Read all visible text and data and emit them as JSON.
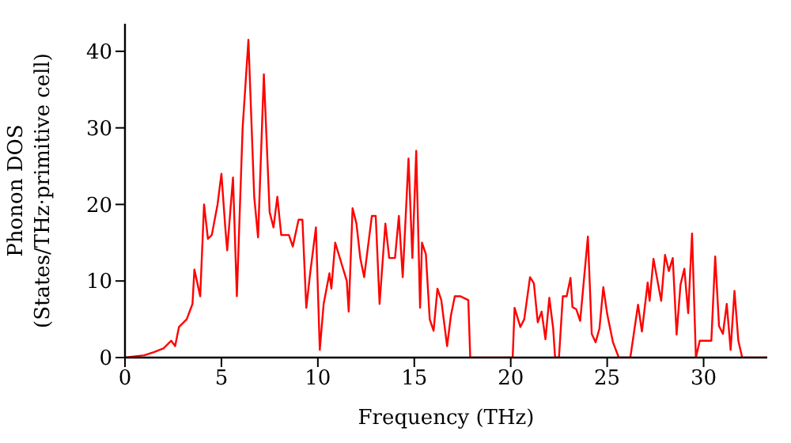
{
  "chart_data": {
    "type": "line",
    "xlabel": "Frequency (THz)",
    "ylabel": "Phonon DOS\n(States/THz·primitive cell)",
    "xlim": [
      0,
      33.3
    ],
    "ylim": [
      0,
      43.6
    ],
    "xticks": [
      0,
      5,
      10,
      15,
      20,
      25,
      30
    ],
    "yticks": [
      0,
      10,
      20,
      30,
      40
    ],
    "grid": false,
    "legend": false,
    "marker": "none",
    "line_style": "solid",
    "x": [
      0,
      1,
      1.5,
      2,
      2.4,
      2.6,
      2.8,
      3.2,
      3.5,
      3.6,
      3.9,
      4.1,
      4.3,
      4.5,
      4.8,
      5,
      5.2,
      5.3,
      5.6,
      5.8,
      6.1,
      6.4,
      6.7,
      6.9,
      7.2,
      7.5,
      7.7,
      7.9,
      8.1,
      8.5,
      8.7,
      9,
      9.2,
      9.4,
      9.6,
      9.9,
      10.1,
      10.3,
      10.6,
      10.7,
      10.9,
      11.2,
      11.5,
      11.6,
      11.8,
      12,
      12.2,
      12.4,
      12.8,
      13,
      13.2,
      13.5,
      13.7,
      14,
      14.2,
      14.4,
      14.7,
      14.9,
      15.1,
      15.3,
      15.4,
      15.6,
      15.8,
      16,
      16.2,
      16.4,
      16.7,
      16.9,
      17.1,
      17.4,
      17.8,
      17.9,
      20.1,
      20.2,
      20.5,
      20.7,
      21,
      21.2,
      21.4,
      21.6,
      21.8,
      22,
      22.2,
      22.3,
      22.5,
      22.7,
      22.9,
      23.1,
      23.2,
      23.4,
      23.6,
      24,
      24.2,
      24.4,
      24.6,
      24.8,
      25,
      25.3,
      25.6,
      26.2,
      26.6,
      26.8,
      27.1,
      27.2,
      27.4,
      27.8,
      28,
      28.2,
      28.4,
      28.6,
      28.8,
      29,
      29.2,
      29.4,
      29.6,
      29.8,
      30.4,
      30.6,
      30.8,
      31,
      31.2,
      31.4,
      31.6,
      31.8,
      32,
      33.3
    ],
    "series": [
      {
        "color": "#ff0000",
        "values": [
          0,
          0.3,
          0.7,
          1.2,
          2.2,
          1.5,
          4,
          5,
          7,
          11.5,
          8,
          20,
          15.5,
          16,
          20,
          24,
          17,
          14,
          23.5,
          8,
          30,
          41.5,
          21,
          15.7,
          37,
          19,
          17,
          21,
          16,
          16,
          14.5,
          18,
          18,
          6.5,
          11,
          17,
          1,
          7,
          11,
          9,
          15,
          12.5,
          10,
          6,
          19.5,
          17.5,
          13,
          10.5,
          18.5,
          18.5,
          7,
          17.5,
          13,
          13,
          18.5,
          10.5,
          26,
          13,
          27,
          6.5,
          15,
          13.5,
          5,
          3.5,
          9,
          7.5,
          1.5,
          5.5,
          8,
          8,
          7.5,
          0,
          0,
          6.5,
          4,
          5,
          10.5,
          9.7,
          4.6,
          6,
          2.4,
          7.8,
          3.8,
          0,
          0,
          8,
          8,
          10.4,
          6.6,
          6.3,
          4.8,
          15.8,
          3.1,
          2,
          3.8,
          9.2,
          5.7,
          2,
          0,
          0,
          6.9,
          3.4,
          9.8,
          7.4,
          12.9,
          7.4,
          13.4,
          11.3,
          13,
          3,
          9.5,
          11.6,
          5.8,
          16.2,
          0,
          2.2,
          2.2,
          13.2,
          4.1,
          3.1,
          7,
          1,
          8.7,
          2.2,
          0,
          0
        ]
      }
    ]
  }
}
